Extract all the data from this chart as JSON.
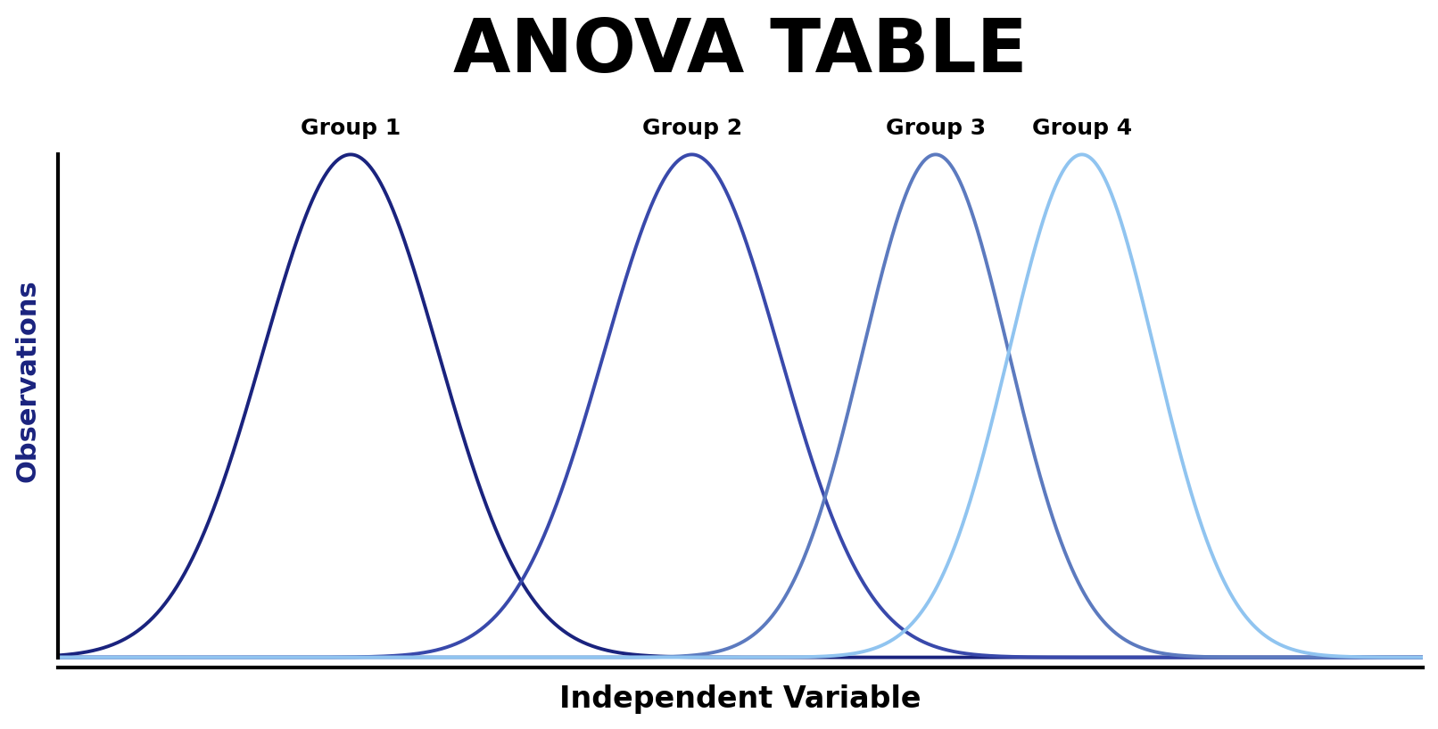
{
  "title": "ANOVA TABLE",
  "xlabel": "Independent Variable",
  "ylabel": "Observations",
  "background_color": "#ffffff",
  "title_fontsize": 60,
  "xlabel_fontsize": 24,
  "ylabel_fontsize": 22,
  "label_fontweight": "bold",
  "groups": [
    {
      "label": "Group 1",
      "mean": 2.2,
      "std": 0.72,
      "color": "#1a237e"
    },
    {
      "label": "Group 2",
      "mean": 5.0,
      "std": 0.72,
      "color": "#3949ab"
    },
    {
      "label": "Group 3",
      "mean": 7.0,
      "std": 0.6,
      "color": "#5c7abf"
    },
    {
      "label": "Group 4",
      "mean": 8.2,
      "std": 0.6,
      "color": "#90c4f0"
    }
  ],
  "group_label_fontsize": 18,
  "group_label_fontweight": "bold",
  "line_width": 2.8,
  "xlim": [
    -0.2,
    11.0
  ],
  "ylim": [
    -0.02,
    1.12
  ]
}
